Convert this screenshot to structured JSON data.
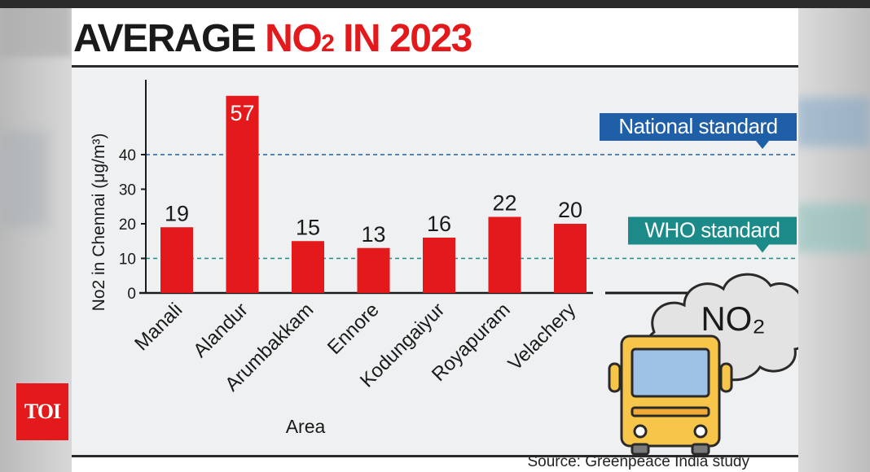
{
  "title": {
    "part1": "AVERAGE ",
    "part2": "NO",
    "part2_sub": "2",
    "part3": " IN 2023"
  },
  "logo": {
    "text": "TOI"
  },
  "source": "Source: Greenpeace India study",
  "colors": {
    "bar": "#e3191b",
    "national": "#1f5fa8",
    "who": "#1c8a88",
    "title_red": "#e3191b"
  },
  "illustration": {
    "icons": [
      "cloud-icon",
      "bus-icon"
    ],
    "cloud_text": "NO₂"
  },
  "chart_data": {
    "type": "bar",
    "categories": [
      "Manali",
      "Alandur",
      "Arumbakkam",
      "Ennore",
      "Kodungaiyur",
      "Royapuram",
      "Velachery"
    ],
    "values": [
      19,
      57,
      15,
      13,
      16,
      22,
      20
    ],
    "xlabel": "Area",
    "ylabel": "No2 in Chennai (μg/m³)",
    "yticks": [
      0,
      10,
      20,
      30,
      40
    ],
    "ylim": [
      0,
      57
    ],
    "reference_lines": [
      {
        "name": "National standard",
        "value": 40
      },
      {
        "name": "WHO standard",
        "value": 10
      }
    ],
    "grid": false
  }
}
